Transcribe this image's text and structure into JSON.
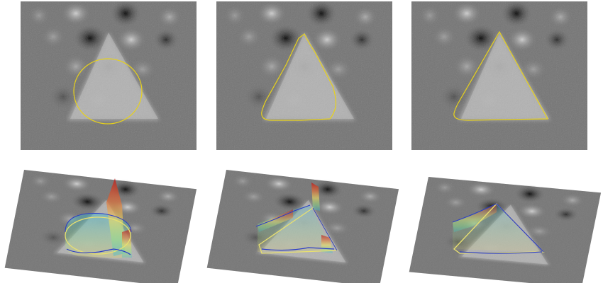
{
  "figure": {
    "panels": [
      {
        "id": "initial-contour-2d",
        "view": "top",
        "contour": "circle",
        "contour_color": "#e8d21a"
      },
      {
        "id": "intermediate-contour-2d",
        "view": "top",
        "contour": "partial-triangle",
        "contour_color": "#e8d21a"
      },
      {
        "id": "final-contour-2d",
        "view": "top",
        "contour": "triangle",
        "contour_color": "#e8d21a"
      },
      {
        "id": "initial-contour-3d",
        "view": "perspective",
        "contour": "circle",
        "surface_colormap": [
          "#2a3cc8",
          "#2fb8d8",
          "#8ee08a",
          "#f2e060",
          "#e0703a",
          "#b82020"
        ]
      },
      {
        "id": "intermediate-contour-3d",
        "view": "perspective",
        "contour": "partial-triangle",
        "surface_colormap": [
          "#2a3cc8",
          "#2fb8d8",
          "#8ee08a",
          "#f2e060",
          "#e0703a",
          "#b82020"
        ]
      },
      {
        "id": "final-contour-3d",
        "view": "perspective",
        "contour": "triangle",
        "surface_colormap": [
          "#2a3cc8",
          "#2fb8d8",
          "#8ee08a",
          "#f2e060",
          "#e0703a",
          "#b82020"
        ]
      }
    ],
    "colors": {
      "background_gray": "#6c6c6c",
      "triangle_fill": "#b4b4b4",
      "blob_light": "#cfcfcf",
      "blob_dark": "#0c0c0c"
    }
  }
}
